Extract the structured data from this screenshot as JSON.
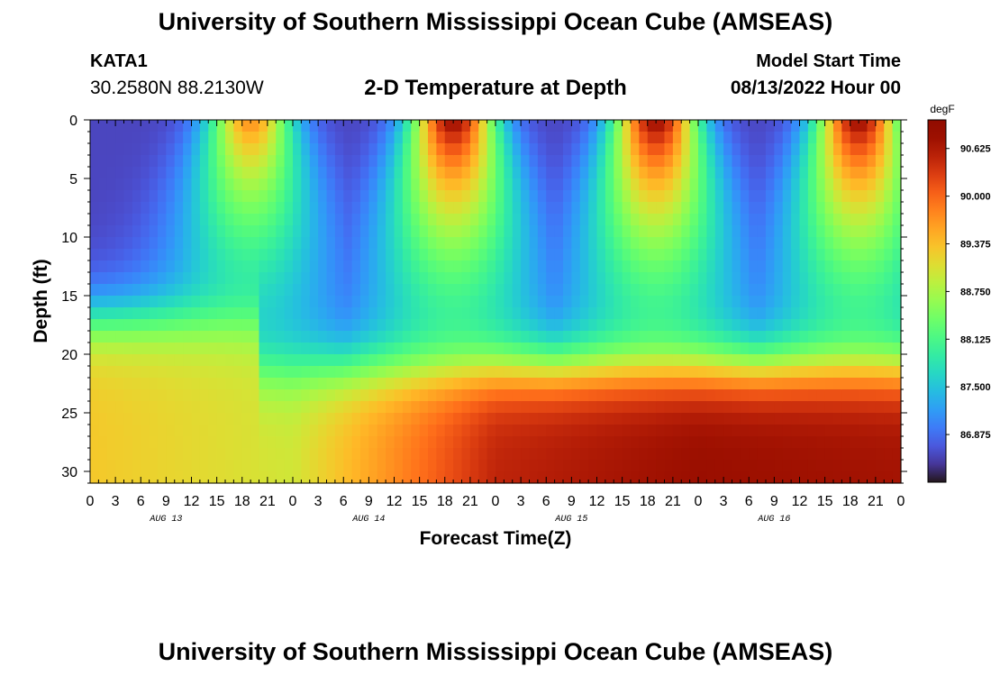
{
  "page": {
    "title": "University of Southern Mississippi Ocean Cube (AMSEAS)",
    "repeat_title": "University of Southern Mississippi Ocean Cube (AMSEAS)",
    "station": "KATA1",
    "coordinates": "30.2580N  88.2130W",
    "model_start_label": "Model Start Time",
    "model_start_value": "08/13/2022 Hour 00"
  },
  "chart_data": {
    "type": "heatmap",
    "title": "2-D Temperature at Depth",
    "xlabel": "Forecast Time(Z)",
    "ylabel": "Depth (ft)",
    "x_ticks": [
      "0",
      "3",
      "6",
      "9",
      "12",
      "15",
      "18",
      "21",
      "0",
      "3",
      "6",
      "9",
      "12",
      "15",
      "18",
      "21",
      "0",
      "3",
      "6",
      "9",
      "12",
      "15",
      "18",
      "21",
      "0",
      "3",
      "6",
      "9",
      "12",
      "15",
      "18",
      "21",
      "0"
    ],
    "x_range_hours": [
      0,
      96
    ],
    "x_day_labels": [
      "AUG 13",
      "AUG 14",
      "AUG 15",
      "AUG 16"
    ],
    "y_ticks": [
      0,
      5,
      10,
      15,
      20,
      25,
      30
    ],
    "y_range": [
      0,
      31
    ],
    "y_inverted": true,
    "colorbar": {
      "unit": "degF",
      "min": 86.25,
      "max": 91.0,
      "ticks": [
        "90.625",
        "90.000",
        "89.375",
        "88.750",
        "88.125",
        "87.500",
        "86.875"
      ],
      "colormap": "turbo"
    },
    "temperature_model": {
      "deep_warm_degF": [
        89.3,
        89.0,
        90.5,
        90.8,
        90.7
      ],
      "deep_warm_days": [
        0,
        1,
        2,
        3,
        4
      ],
      "surface_warm_peaks_hour": [
        19,
        43,
        67,
        91
      ],
      "surface_cold_degF": 86.6,
      "thermocline_depth_ft": 21
    }
  }
}
